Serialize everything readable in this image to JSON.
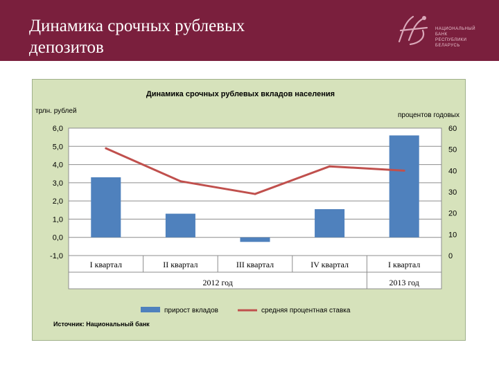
{
  "slide": {
    "title": "Динамика срочных  рублевых\nдепозитов"
  },
  "logo": {
    "text": "НАЦИОНАЛЬНЫЙ\nБАНК\nРЕСПУБЛИКИ\nБЕЛАРУСЬ",
    "accent_color": "#d9a7b8"
  },
  "chart_data": {
    "type": "bar",
    "title": "Динамика срочных рублевых  вкладов населения",
    "ylabel_left": "трлн. рублей",
    "ylabel_right": "процентов годовых",
    "categories": [
      "I квартал",
      "II квартал",
      "III квартал",
      "IV квартал",
      "I квартал"
    ],
    "groups": [
      {
        "label": "2012 год",
        "span": 4
      },
      {
        "label": "2013 год",
        "span": 1
      }
    ],
    "left_axis": {
      "ylim": [
        -1,
        6
      ],
      "ticks": [
        6,
        5,
        4,
        3,
        2,
        1,
        0,
        -1
      ],
      "tick_labels": [
        "6,0",
        "5,0",
        "4,0",
        "3,0",
        "2,0",
        "1,0",
        "0,0",
        "-1,0"
      ]
    },
    "right_axis": {
      "ylim": [
        0,
        60
      ],
      "ticks": [
        60,
        50,
        40,
        30,
        20,
        10,
        0
      ],
      "tick_labels": [
        "60",
        "50",
        "40",
        "30",
        "20",
        "10",
        "0"
      ]
    },
    "series": [
      {
        "name": "прирост вкладов",
        "type": "bar",
        "axis": "left",
        "color": "#4f81bd",
        "values": [
          3.3,
          1.3,
          -0.25,
          1.55,
          5.6
        ]
      },
      {
        "name": "средняя процентная  ставка",
        "type": "line",
        "axis": "right",
        "color": "#c0504d",
        "values": [
          50.5,
          35,
          29,
          42,
          40
        ]
      }
    ],
    "grid": true,
    "legend_position": "bottom",
    "source": "Источник: Национальный банк"
  }
}
